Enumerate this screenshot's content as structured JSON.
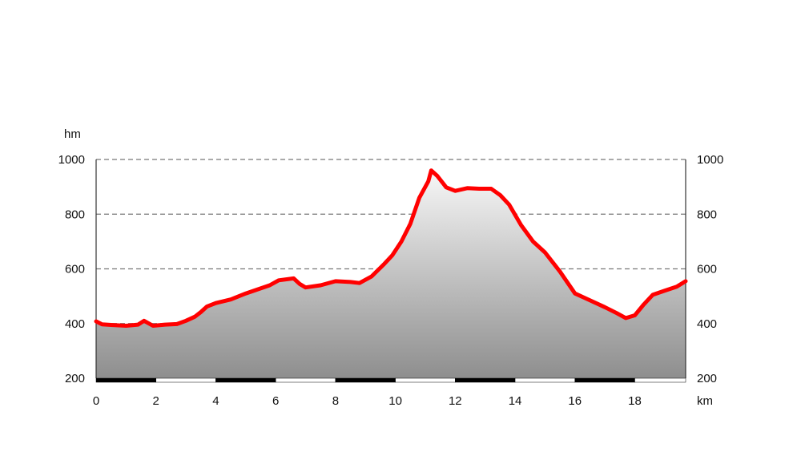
{
  "chart_data": {
    "type": "area",
    "title": "",
    "xlabel": "km",
    "ylabel": "hm",
    "xlim": [
      0,
      19.7
    ],
    "ylim": [
      200,
      1000
    ],
    "x_ticks": [
      "0",
      "2",
      "4",
      "6",
      "8",
      "10",
      "12",
      "14",
      "16",
      "18"
    ],
    "y_ticks": [
      "200",
      "400",
      "600",
      "800",
      "1000"
    ],
    "grid": "horizontal-dashed",
    "colors": {
      "line": "#ff0000",
      "fill_top": "#f7f7f7",
      "fill_bottom": "#8e8e8e",
      "grid": "#777777"
    },
    "series": [
      {
        "x": [
          0,
          0.2,
          0.5,
          1.0,
          1.4,
          1.6,
          1.9,
          2.3,
          2.7,
          3.0,
          3.3,
          3.5,
          3.7,
          4.0,
          4.5,
          5.0,
          5.4,
          5.8,
          6.1,
          6.6,
          6.8,
          7.0,
          7.5,
          8.0,
          8.5,
          8.8,
          9.2,
          9.6,
          9.9,
          10.2,
          10.5,
          10.8,
          11.1,
          11.2,
          11.4,
          11.7,
          12.0,
          12.4,
          12.8,
          13.2,
          13.5,
          13.8,
          14.2,
          14.6,
          15.0,
          15.5,
          16.0,
          16.4,
          17.0,
          17.4,
          17.7,
          18.0,
          18.3,
          18.6,
          19.0,
          19.4,
          19.7
        ],
        "y": [
          408,
          397,
          395,
          392,
          396,
          410,
          392,
          396,
          398,
          410,
          425,
          442,
          462,
          475,
          488,
          510,
          525,
          540,
          558,
          565,
          545,
          532,
          540,
          555,
          552,
          548,
          572,
          615,
          650,
          700,
          765,
          860,
          920,
          960,
          940,
          898,
          885,
          895,
          893,
          893,
          870,
          835,
          760,
          700,
          660,
          590,
          510,
          490,
          460,
          438,
          420,
          430,
          470,
          505,
          520,
          535,
          555
        ]
      }
    ]
  }
}
